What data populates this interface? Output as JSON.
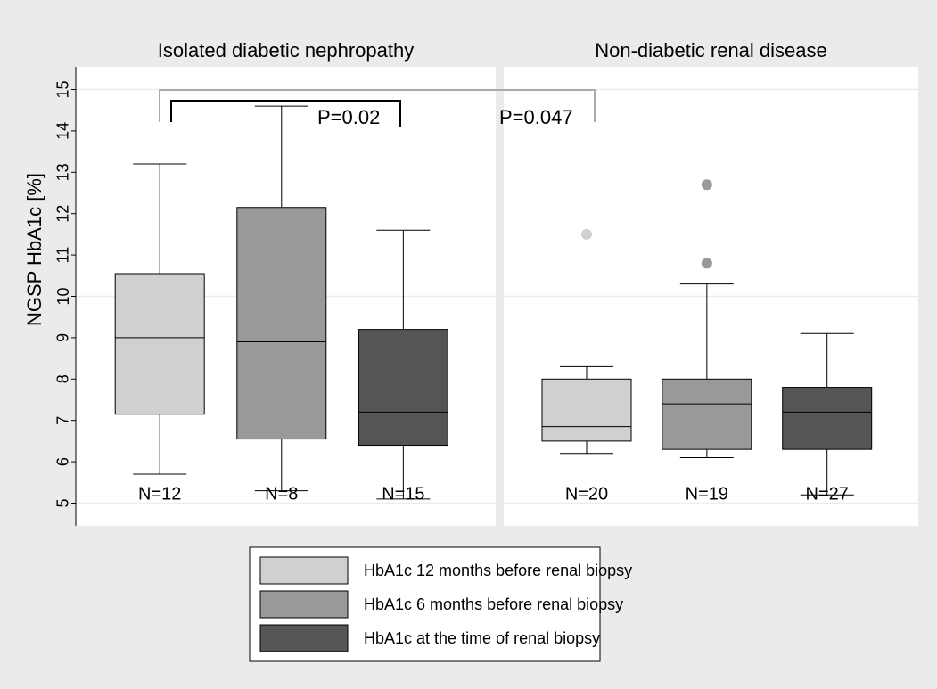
{
  "chart_data": [
    {
      "type": "box",
      "title": "Isolated diabetic nephropathy",
      "ylabel": "NGSP HbA1c [%]",
      "ylim": [
        4.45,
        15.55
      ],
      "yticks": [
        5,
        6,
        7,
        8,
        9,
        10,
        11,
        12,
        13,
        14,
        15
      ],
      "boxes": [
        {
          "whislo": 5.7,
          "q1": 7.15,
          "med": 9.0,
          "q3": 10.55,
          "whishi": 13.2,
          "fliers": [],
          "n_label": "N=12"
        },
        {
          "whislo": 5.3,
          "q1": 6.55,
          "med": 8.9,
          "q3": 12.15,
          "whishi": 14.6,
          "fliers": [],
          "n_label": "N=8"
        },
        {
          "whislo": 5.1,
          "q1": 6.4,
          "med": 7.2,
          "q3": 9.2,
          "whishi": 11.6,
          "fliers": [],
          "n_label": "N=15"
        }
      ],
      "annotations": [
        {
          "text": "P=0.047",
          "color": "#aaaaaa"
        },
        {
          "text": "P=0.02",
          "color": "#000000"
        }
      ]
    },
    {
      "type": "box",
      "title": "Non-diabetic renal disease",
      "ylim": [
        4.45,
        15.55
      ],
      "boxes": [
        {
          "whislo": 6.2,
          "q1": 6.5,
          "med": 6.85,
          "q3": 8.0,
          "whishi": 8.3,
          "fliers": [
            11.5
          ],
          "n_label": "N=20"
        },
        {
          "whislo": 6.1,
          "q1": 6.3,
          "med": 7.4,
          "q3": 8.0,
          "whishi": 10.3,
          "fliers": [
            12.7,
            10.8
          ],
          "n_label": "N=19"
        },
        {
          "whislo": 5.2,
          "q1": 6.3,
          "med": 7.2,
          "q3": 7.8,
          "whishi": 9.1,
          "fliers": [],
          "n_label": "N=27"
        }
      ]
    }
  ],
  "legend": {
    "entries": [
      {
        "name": "HbA1c 12 months before renal biopsy",
        "color": "#d0d0d0"
      },
      {
        "name": "HbA1c 6 months before renal biopsy",
        "color": "#999999"
      },
      {
        "name": "HbA1c at the time of renal biopsy",
        "color": "#555555"
      }
    ]
  }
}
